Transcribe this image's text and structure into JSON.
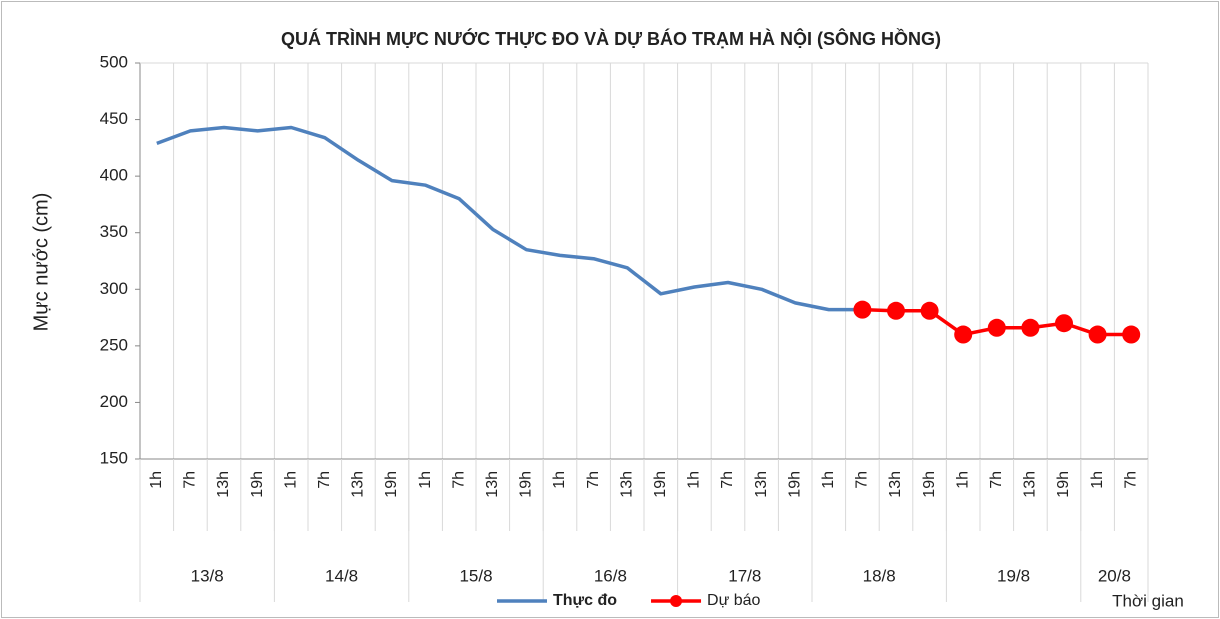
{
  "chart_data": {
    "type": "line",
    "title": "QUÁ TRÌNH MỰC NƯỚC THỰC ĐO VÀ DỰ BÁO TRẠM HÀ NỘI (SÔNG HỒNG)",
    "y_label": "Mực nước (cm)",
    "x_label": "Thời gian",
    "categories": [
      "1h",
      "7h",
      "13h",
      "19h",
      "1h",
      "7h",
      "13h",
      "19h",
      "1h",
      "7h",
      "13h",
      "19h",
      "1h",
      "7h",
      "13h",
      "19h",
      "1h",
      "7h",
      "13h",
      "19h",
      "1h",
      "7h",
      "13h",
      "19h",
      "1h",
      "7h",
      "13h",
      "19h",
      "1h",
      "7h"
    ],
    "groups": [
      "13/8",
      "14/8",
      "15/8",
      "16/8",
      "17/8",
      "18/8",
      "19/8",
      "20/8"
    ],
    "series": [
      {
        "name": "Thực đo",
        "color": "#4f81bd",
        "marker": false,
        "values": [
          429,
          440,
          443,
          440,
          443,
          434,
          414,
          396,
          392,
          380,
          353,
          335,
          330,
          327,
          319,
          296,
          302,
          306,
          300,
          288,
          282,
          282,
          null,
          null,
          null,
          null,
          null,
          null,
          null,
          null
        ]
      },
      {
        "name": "Dự báo",
        "color": "#ff0000",
        "marker": true,
        "values": [
          null,
          null,
          null,
          null,
          null,
          null,
          null,
          null,
          null,
          null,
          null,
          null,
          null,
          null,
          null,
          null,
          null,
          null,
          null,
          null,
          null,
          282,
          281,
          281,
          260,
          266,
          266,
          270,
          260,
          260
        ]
      }
    ],
    "ylim": [
      150,
      500
    ],
    "yticks": [
      150,
      200,
      250,
      300,
      350,
      400,
      450,
      500
    ],
    "grid": "x"
  }
}
